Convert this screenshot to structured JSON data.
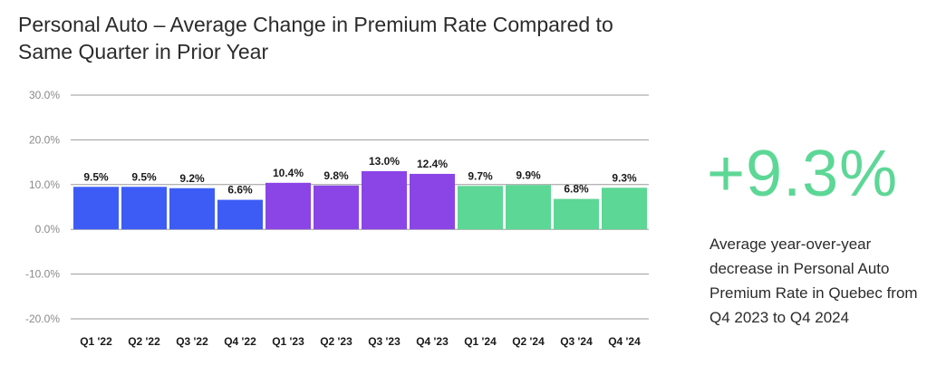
{
  "title_line1": "Personal Auto – Average Change in Premium Rate Compared to",
  "title_line2": "Same Quarter in Prior Year",
  "highlight": {
    "value": "+9.3%",
    "description": "Average year-over-year decrease in Personal Auto Premium Rate in Quebec from Q4 2023 to Q4 2024"
  },
  "colors": {
    "y2022": "#3d5cf5",
    "y2023": "#8b45e6",
    "y2024": "#5dd796",
    "grid": "#9a9a9a"
  },
  "chart_data": {
    "type": "bar",
    "title": "Personal Auto – Average Change in Premium Rate Compared to Same Quarter in Prior Year",
    "xlabel": "",
    "ylabel": "",
    "ylim": [
      -20,
      30
    ],
    "yticks": [
      30,
      20,
      10,
      0,
      -10,
      -20
    ],
    "ytick_labels": [
      "30.0%",
      "20.0%",
      "10.0%",
      "0.0%",
      "-10.0%",
      "-20.0%"
    ],
    "grid": true,
    "categories": [
      "Q1 '22",
      "Q2 '22",
      "Q3 '22",
      "Q4 '22",
      "Q1 '23",
      "Q2 '23",
      "Q3 '23",
      "Q4 '23",
      "Q1 '24",
      "Q2 '24",
      "Q3 '24",
      "Q4 '24"
    ],
    "values": [
      9.5,
      9.5,
      9.2,
      6.6,
      10.4,
      9.8,
      13.0,
      12.4,
      9.7,
      9.9,
      6.8,
      9.3
    ],
    "labels": [
      "9.5%",
      "9.5%",
      "9.2%",
      "6.6%",
      "10.4%",
      "9.8%",
      "13.0%",
      "12.4%",
      "9.7%",
      "9.9%",
      "6.8%",
      "9.3%"
    ],
    "year_groups": [
      "2022",
      "2022",
      "2022",
      "2022",
      "2023",
      "2023",
      "2023",
      "2023",
      "2024",
      "2024",
      "2024",
      "2024"
    ]
  }
}
